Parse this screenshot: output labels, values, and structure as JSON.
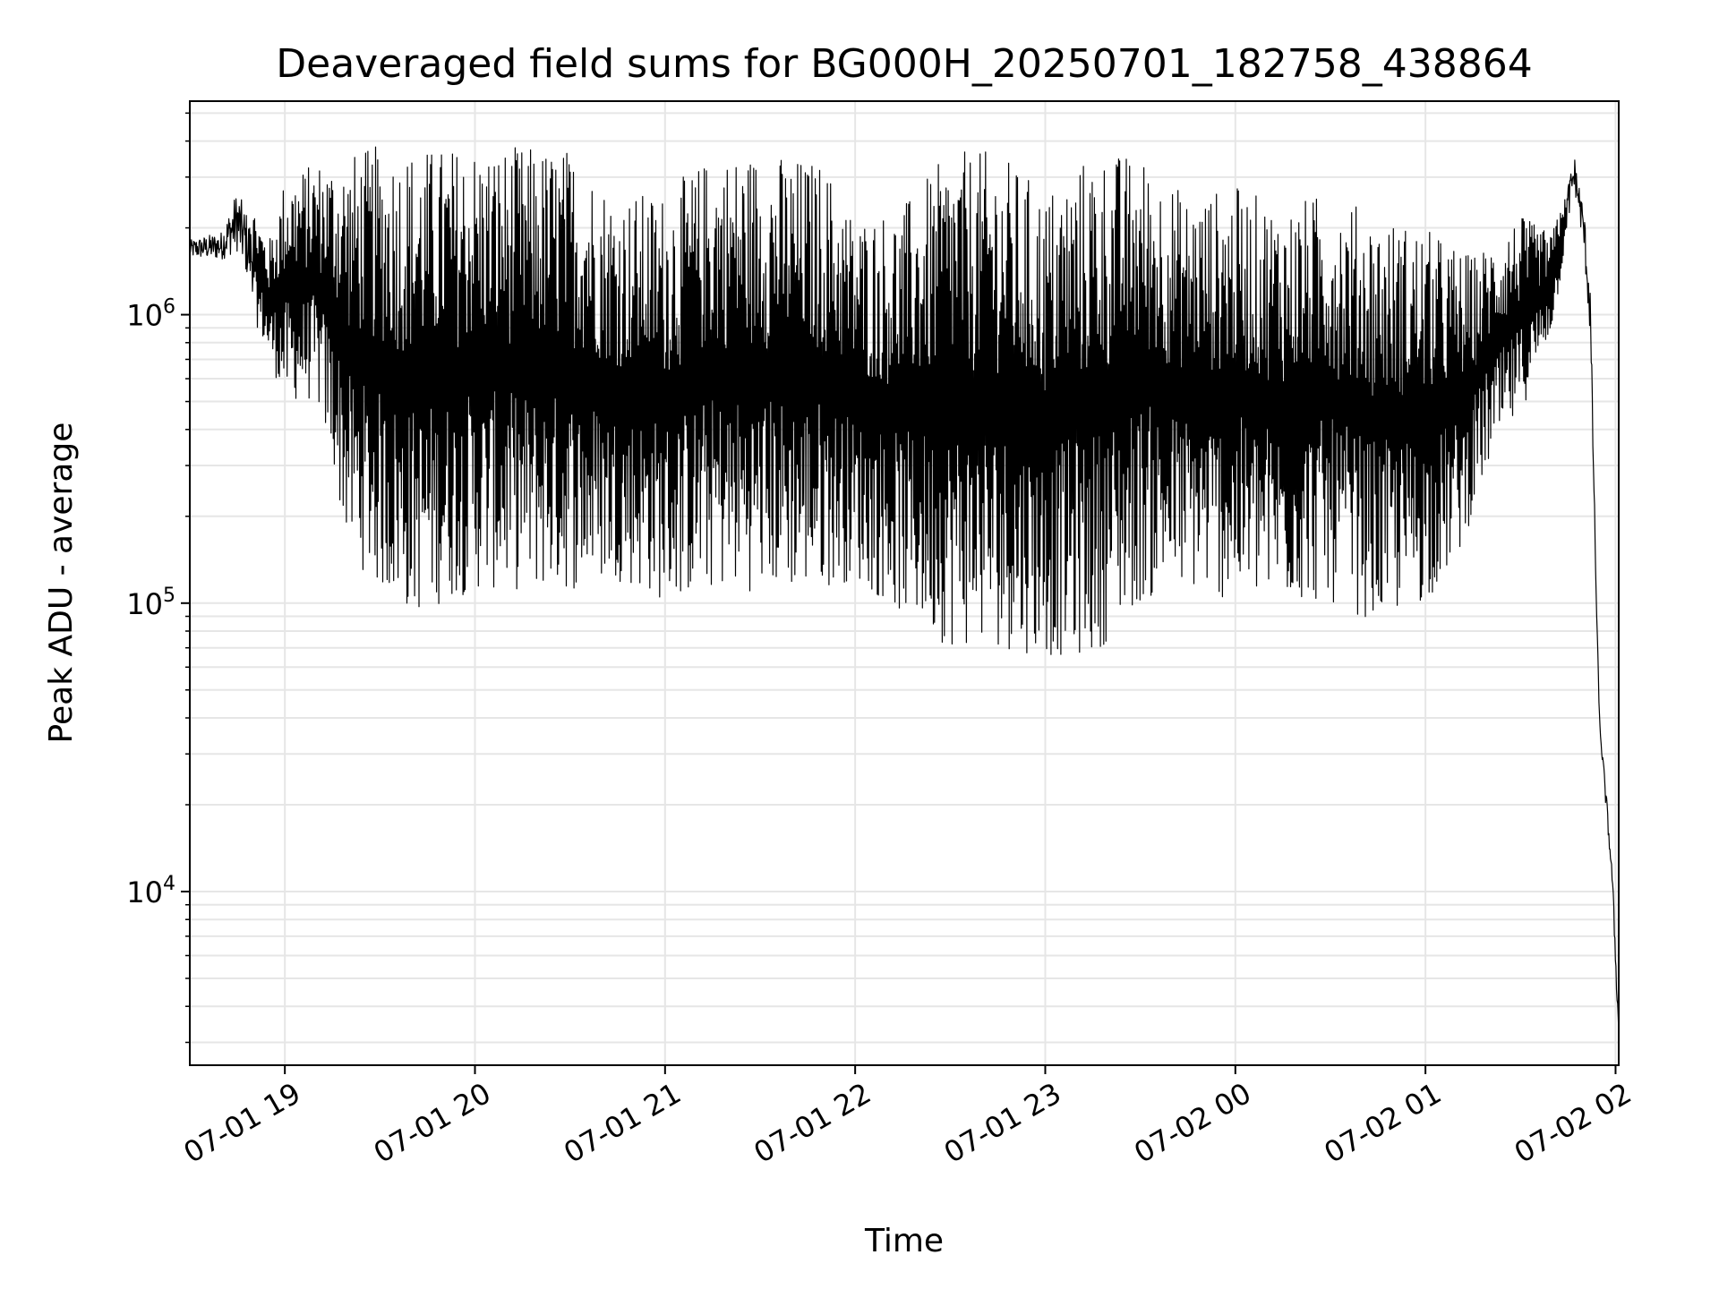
{
  "chart_data": {
    "type": "line",
    "title": "Deaveraged field sums for BG000H_20250701_182758_438864",
    "xlabel": "Time",
    "ylabel": "Peak ADU - average",
    "yscale": "log",
    "ylim": [
      2500,
      5500000
    ],
    "xlim": [
      "07-01 18:30",
      "07-02 02:01"
    ],
    "grid": true,
    "line_color": "#000000",
    "x_ticks": [
      "07-01 19",
      "07-01 20",
      "07-01 21",
      "07-01 22",
      "07-01 23",
      "07-02 00",
      "07-02 01",
      "07-02 02"
    ],
    "y_ticks": [
      {
        "value": 10000,
        "base": "10",
        "exp": "4"
      },
      {
        "value": 100000,
        "base": "10",
        "exp": "5"
      },
      {
        "value": 1000000,
        "base": "10",
        "exp": "6"
      }
    ],
    "series": [
      {
        "envelope_note_free": true,
        "x_minutes_from": "07-01 18:30",
        "upper": [
          [
            "07-01 18:30",
            1900000
          ],
          [
            "07-01 18:40",
            2100000
          ],
          [
            "07-01 18:45",
            3200000
          ],
          [
            "07-01 18:50",
            2400000
          ],
          [
            "07-01 18:55",
            1800000
          ],
          [
            "07-01 19:00",
            3000000
          ],
          [
            "07-01 19:10",
            3400000
          ],
          [
            "07-01 19:20",
            3600000
          ],
          [
            "07-01 19:30",
            3900000
          ],
          [
            "07-01 19:45",
            3800000
          ],
          [
            "07-01 20:00",
            3900000
          ],
          [
            "07-01 20:30",
            3800000
          ],
          [
            "07-01 20:45",
            2600000
          ],
          [
            "07-01 21:00",
            2700000
          ],
          [
            "07-01 21:15",
            3600000
          ],
          [
            "07-01 21:30",
            3700000
          ],
          [
            "07-01 21:50",
            3400000
          ],
          [
            "07-01 22:00",
            2200000
          ],
          [
            "07-01 22:15",
            2400000
          ],
          [
            "07-01 22:30",
            3700000
          ],
          [
            "07-01 22:45",
            3700000
          ],
          [
            "07-01 23:00",
            2700000
          ],
          [
            "07-01 23:15",
            3700000
          ],
          [
            "07-01 23:30",
            3600000
          ],
          [
            "07-01 23:45",
            2600000
          ],
          [
            "07-02 00:00",
            2800000
          ],
          [
            "07-02 00:15",
            2400000
          ],
          [
            "07-02 00:30",
            2700000
          ],
          [
            "07-02 00:45",
            2200000
          ],
          [
            "07-02 01:00",
            2000000
          ],
          [
            "07-02 01:15",
            1600000
          ],
          [
            "07-02 01:30",
            2200000
          ],
          [
            "07-02 01:40",
            1900000
          ],
          [
            "07-02 01:47",
            3900000
          ],
          [
            "07-02 01:50",
            2600000
          ],
          [
            "07-02 01:52",
            1500000
          ],
          [
            "07-02 01:54",
            100000
          ],
          [
            "07-02 01:55",
            40000
          ],
          [
            "07-02 01:57",
            24000
          ],
          [
            "07-02 01:59",
            12000
          ],
          [
            "07-02 02:00",
            7000
          ],
          [
            "07-02 02:01",
            3500
          ]
        ],
        "lower": [
          [
            "07-01 18:30",
            1500000
          ],
          [
            "07-01 18:45",
            1400000
          ],
          [
            "07-01 18:55",
            700000
          ],
          [
            "07-01 19:00",
            500000
          ],
          [
            "07-01 19:10",
            500000
          ],
          [
            "07-01 19:15",
            300000
          ],
          [
            "07-01 19:20",
            150000
          ],
          [
            "07-01 19:30",
            110000
          ],
          [
            "07-01 19:40",
            90000
          ],
          [
            "07-01 19:50",
            100000
          ],
          [
            "07-01 20:00",
            110000
          ],
          [
            "07-01 20:30",
            110000
          ],
          [
            "07-01 20:45",
            120000
          ],
          [
            "07-01 21:00",
            100000
          ],
          [
            "07-01 21:15",
            110000
          ],
          [
            "07-01 21:30",
            110000
          ],
          [
            "07-01 21:45",
            110000
          ],
          [
            "07-01 22:00",
            120000
          ],
          [
            "07-01 22:15",
            90000
          ],
          [
            "07-01 22:30",
            70000
          ],
          [
            "07-01 22:45",
            70000
          ],
          [
            "07-01 23:00",
            65000
          ],
          [
            "07-01 23:15",
            65000
          ],
          [
            "07-01 23:30",
            100000
          ],
          [
            "07-01 23:45",
            110000
          ],
          [
            "07-02 00:00",
            100000
          ],
          [
            "07-02 00:15",
            100000
          ],
          [
            "07-02 00:30",
            100000
          ],
          [
            "07-02 00:45",
            85000
          ],
          [
            "07-02 01:00",
            100000
          ],
          [
            "07-02 01:10",
            140000
          ],
          [
            "07-02 01:20",
            300000
          ],
          [
            "07-02 01:30",
            450000
          ],
          [
            "07-02 01:40",
            900000
          ],
          [
            "07-02 01:47",
            2500000
          ],
          [
            "07-02 01:50",
            1500000
          ],
          [
            "07-02 01:52",
            700000
          ],
          [
            "07-02 01:54",
            90000
          ],
          [
            "07-02 01:55",
            35000
          ],
          [
            "07-02 01:57",
            18000
          ],
          [
            "07-02 01:59",
            10000
          ],
          [
            "07-02 02:00",
            5000
          ],
          [
            "07-02 02:01",
            3000
          ]
        ]
      }
    ]
  }
}
